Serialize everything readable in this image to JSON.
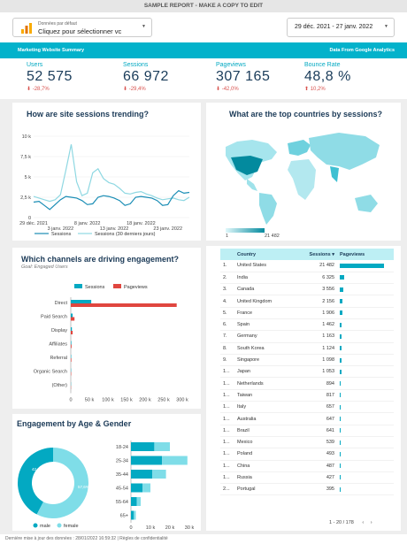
{
  "header": {
    "title": "SAMPLE REPORT - MAKE A COPY TO EDIT"
  },
  "data_source": {
    "small": "Données par défaut",
    "main": "Cliquez pour sélectionner vc"
  },
  "date_range": {
    "label": "29 déc. 2021 - 27 janv. 2022"
  },
  "banner": {
    "left": "Marketing Website Summary",
    "right": "Data From Google Analytics"
  },
  "kpis": [
    {
      "label": "Users",
      "value": "52 575",
      "delta": "-28,7%"
    },
    {
      "label": "Sessions",
      "value": "66 972",
      "delta": "-29,4%"
    },
    {
      "label": "Pageviews",
      "value": "307 165",
      "delta": "-42,0%"
    },
    {
      "label": "Bounce Rate",
      "value": "48,8 %",
      "delta": "10,2%"
    }
  ],
  "trend": {
    "title": "How are site sessions trending?",
    "y_ticks": [
      "10 k",
      "7,5 k",
      "5 k",
      "2,5 k",
      "0"
    ],
    "x_ticks_top": [
      "29 déc. 2021",
      "8 janv. 2022",
      "18 janv. 2022"
    ],
    "x_ticks_bottom": [
      "3 janv. 2022",
      "13 janv. 2022",
      "23 janv. 2022"
    ],
    "legend": [
      "Sessions",
      "Sessions (30 derniers jours)"
    ]
  },
  "map": {
    "title": "What are the top countries by sessions?",
    "scale_min": "1",
    "scale_max": "21 482"
  },
  "channels": {
    "title": "Which channels are driving engagement?",
    "subtitle": "Goal: Engaged Users",
    "legend": [
      "Sessions",
      "Pageviews"
    ],
    "x_ticks": [
      "0",
      "50 k",
      "100 k",
      "150 k",
      "200 k",
      "250 k",
      "300 k"
    ]
  },
  "countries": {
    "headers": [
      "Country",
      "Sessions",
      "Pageviews"
    ],
    "sort_indicator": "▾",
    "rows": [
      {
        "rank": "1.",
        "name": "United States",
        "sessions": "21 482"
      },
      {
        "rank": "2.",
        "name": "India",
        "sessions": "6 325"
      },
      {
        "rank": "3.",
        "name": "Canada",
        "sessions": "3 556"
      },
      {
        "rank": "4.",
        "name": "United Kingdom",
        "sessions": "2 156"
      },
      {
        "rank": "5.",
        "name": "France",
        "sessions": "1 906"
      },
      {
        "rank": "6.",
        "name": "Spain",
        "sessions": "1 462"
      },
      {
        "rank": "7.",
        "name": "Germany",
        "sessions": "1 163"
      },
      {
        "rank": "8.",
        "name": "South Korea",
        "sessions": "1 124"
      },
      {
        "rank": "9.",
        "name": "Singapore",
        "sessions": "1 098"
      },
      {
        "rank": "1...",
        "name": "Japan",
        "sessions": "1 053"
      },
      {
        "rank": "1...",
        "name": "Netherlands",
        "sessions": "894"
      },
      {
        "rank": "1...",
        "name": "Taiwan",
        "sessions": "817"
      },
      {
        "rank": "1...",
        "name": "Italy",
        "sessions": "657"
      },
      {
        "rank": "1...",
        "name": "Australia",
        "sessions": "647"
      },
      {
        "rank": "1...",
        "name": "Brazil",
        "sessions": "641"
      },
      {
        "rank": "1...",
        "name": "Mexico",
        "sessions": "539"
      },
      {
        "rank": "1...",
        "name": "Poland",
        "sessions": "493"
      },
      {
        "rank": "1...",
        "name": "China",
        "sessions": "487"
      },
      {
        "rank": "1...",
        "name": "Russia",
        "sessions": "427"
      },
      {
        "rank": "2...",
        "name": "Portugal",
        "sessions": "395"
      }
    ],
    "pager": "1 - 20 / 178"
  },
  "engagement": {
    "title": "Engagement by Age & Gender",
    "legend": [
      "male",
      "female"
    ],
    "donut_left_label": "42,4%",
    "donut_right_label": "57,6%",
    "x_ticks": [
      "0",
      "10 k",
      "20 k",
      "30 k"
    ]
  },
  "footer": {
    "text": "Dernière mise à jour des données : 28/01/2022 16:59:32 | Règles de confidentialité"
  },
  "colors": {
    "accent": "#03b2cb",
    "dark": "#1b3a57",
    "negative": "#d9534f",
    "light": "#7fdde8"
  },
  "chart_data": [
    {
      "type": "line",
      "title": "How are site sessions trending?",
      "x": [
        "29 déc.",
        "30 déc.",
        "31 déc.",
        "1 janv.",
        "2 janv.",
        "3 janv.",
        "4 janv.",
        "5 janv.",
        "6 janv.",
        "7 janv.",
        "8 janv.",
        "9 janv.",
        "10 janv.",
        "11 janv.",
        "12 janv.",
        "13 janv.",
        "14 janv.",
        "15 janv.",
        "16 janv.",
        "17 janv.",
        "18 janv.",
        "19 janv.",
        "20 janv.",
        "21 janv.",
        "22 janv.",
        "23 janv.",
        "24 janv.",
        "25 janv.",
        "26 janv.",
        "27 janv."
      ],
      "series": [
        {
          "name": "Sessions",
          "values": [
            1900,
            2000,
            1500,
            1000,
            1600,
            2200,
            2600,
            2500,
            2400,
            2100,
            1600,
            1700,
            2500,
            2700,
            2600,
            2400,
            2100,
            1500,
            1700,
            2500,
            2600,
            2500,
            2400,
            2100,
            1500,
            1600,
            2700,
            3300,
            3000,
            3100
          ]
        },
        {
          "name": "Sessions (30 derniers jours)",
          "values": [
            2600,
            2400,
            2200,
            2000,
            2200,
            2800,
            5800,
            9000,
            4400,
            2700,
            3000,
            5500,
            6000,
            4800,
            4300,
            4100,
            3600,
            3000,
            2900,
            3100,
            3200,
            2900,
            2700,
            2400,
            2200,
            2300,
            2400,
            2200,
            2100,
            2500
          ]
        }
      ],
      "ylim": [
        0,
        10000
      ]
    },
    {
      "type": "bar",
      "title": "Which channels are driving engagement?",
      "categories": [
        "Direct",
        "Paid Search",
        "Display",
        "Affiliates",
        "Referral",
        "Organic Search",
        "(Other)"
      ],
      "series": [
        {
          "name": "Sessions",
          "values": [
            55000,
            5000,
            3000,
            1500,
            1000,
            800,
            500
          ]
        },
        {
          "name": "Pageviews",
          "values": [
            285000,
            10000,
            5000,
            2000,
            1500,
            1000,
            500
          ]
        }
      ],
      "xlim": [
        0,
        300000
      ]
    },
    {
      "type": "pie",
      "title": "Engagement by Age & Gender",
      "categories": [
        "male",
        "female"
      ],
      "values": [
        42.4,
        57.6
      ]
    },
    {
      "type": "bar",
      "title": "Engagement by Age & Gender",
      "categories": [
        "18-24",
        "25-34",
        "35-44",
        "45-54",
        "55-64",
        "65+"
      ],
      "series": [
        {
          "name": "male",
          "values": [
            12000,
            16000,
            11000,
            6000,
            3000,
            1500
          ]
        },
        {
          "name": "female",
          "values": [
            8000,
            13000,
            7000,
            4000,
            2000,
            1000
          ]
        }
      ],
      "xlim": [
        0,
        30000
      ]
    }
  ]
}
